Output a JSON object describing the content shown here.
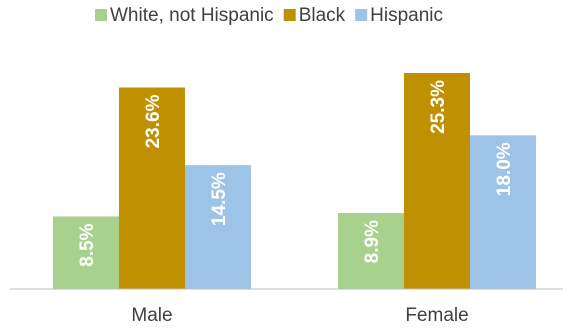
{
  "chart_data": {
    "type": "bar",
    "categories": [
      "Male",
      "Female"
    ],
    "series": [
      {
        "name": "White, not Hispanic",
        "values": [
          8.5,
          8.9
        ],
        "labels": [
          "8.5%",
          "8.9%"
        ],
        "color": "#a9d18e"
      },
      {
        "name": "Black",
        "values": [
          23.6,
          25.3
        ],
        "labels": [
          "23.6%",
          "25.3%"
        ],
        "color": "#bf9000"
      },
      {
        "name": "Hispanic",
        "values": [
          14.5,
          18.0
        ],
        "labels": [
          "14.5%",
          "18.0%"
        ],
        "color": "#9dc3e6"
      }
    ],
    "title": "",
    "xlabel": "",
    "ylabel": "",
    "ylim": [
      0,
      25.3
    ],
    "grid": false,
    "legend": "top"
  }
}
